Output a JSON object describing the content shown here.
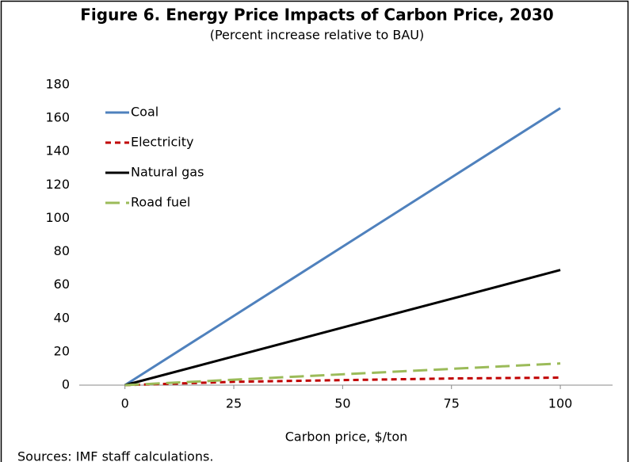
{
  "chart_data": {
    "type": "line",
    "title": "Figure 6. Energy Price Impacts of Carbon Price, 2030",
    "subtitle": "(Percent increase relative to BAU)",
    "x_label": "Carbon price, $/ton",
    "source": "Sources: IMF staff calculations.",
    "x": [
      0,
      25,
      50,
      75,
      100
    ],
    "series": [
      {
        "name": "Coal",
        "color": "#4f81bd",
        "dash": "solid",
        "values": [
          0,
          41.5,
          83,
          124.5,
          166
        ]
      },
      {
        "name": "Electricity",
        "color": "#c00000",
        "dash": "dash",
        "values": [
          0,
          2,
          3,
          4,
          4.5
        ]
      },
      {
        "name": "Natural gas",
        "color": "#000000",
        "dash": "solid",
        "values": [
          0,
          17.25,
          34.5,
          51.75,
          69
        ]
      },
      {
        "name": "Road fuel",
        "color": "#9bbb59",
        "dash": "longdash",
        "values": [
          0,
          3.25,
          6.5,
          9.75,
          13
        ]
      }
    ],
    "xlim": [
      -10.5,
      112
    ],
    "xticks": [
      0,
      25,
      50,
      75,
      100
    ],
    "ylim": [
      0,
      180
    ],
    "yticks": [
      0,
      20,
      40,
      60,
      80,
      100,
      120,
      140,
      160,
      180
    ],
    "grid": false,
    "legend": "upper-left"
  }
}
